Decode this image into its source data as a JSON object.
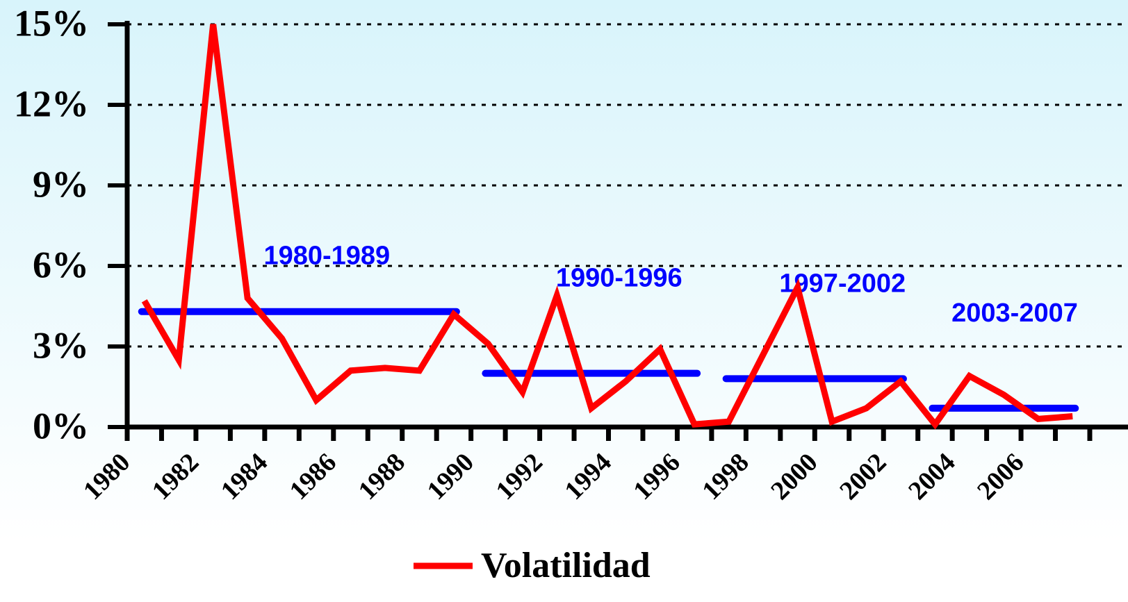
{
  "chart_data": {
    "type": "line",
    "categories": [
      "1980",
      null,
      "1982",
      null,
      "1984",
      null,
      "1986",
      null,
      "1988",
      null,
      "1990",
      null,
      "1992",
      null,
      "1994",
      null,
      "1996",
      null,
      "1998",
      null,
      "2000",
      null,
      "2002",
      null,
      "2004",
      null,
      "2006",
      null
    ],
    "series": [
      {
        "name": "Volatilidad",
        "color": "#ff0000",
        "values": [
          4.7,
          2.5,
          15.0,
          4.8,
          3.3,
          1.0,
          2.1,
          2.2,
          2.1,
          4.2,
          3.1,
          1.3,
          4.9,
          0.7,
          1.7,
          2.9,
          0.1,
          0.2,
          2.7,
          5.2,
          0.2,
          0.7,
          1.7,
          0.1,
          1.9,
          1.2,
          0.3,
          0.4
        ]
      }
    ],
    "period_averages": {
      "color": "#0000ff",
      "items": [
        {
          "label": "1980-1989",
          "value": 4.3
        },
        {
          "label": "1990-1996",
          "value": 2.0
        },
        {
          "label": "1997-2002",
          "value": 1.8
        },
        {
          "label": "2003-2007",
          "value": 0.7
        }
      ]
    },
    "ylim": [
      0,
      15
    ],
    "yticks": [
      {
        "value": 0,
        "label": "0%"
      },
      {
        "value": 3,
        "label": "3%"
      },
      {
        "value": 6,
        "label": "6%"
      },
      {
        "value": 9,
        "label": "9%"
      },
      {
        "value": 12,
        "label": "12%"
      },
      {
        "value": 15,
        "label": "15%"
      }
    ],
    "grid": true,
    "legend": "bottom"
  }
}
